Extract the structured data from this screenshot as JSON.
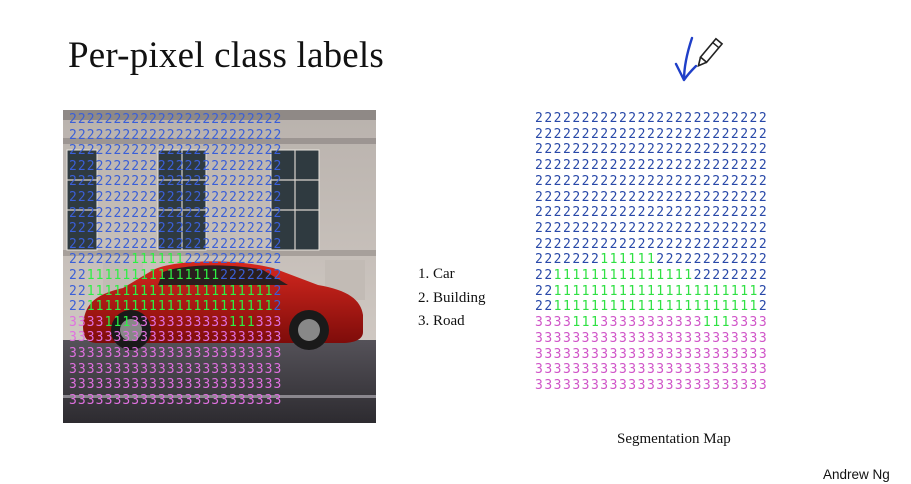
{
  "slide": {
    "title": "Per-pixel class labels",
    "legend": [
      "1. Car",
      "2. Building",
      "3. Road"
    ],
    "caption": "Segmentation Map",
    "author": "Andrew Ng"
  },
  "segmentation_map": {
    "rows": [
      "2222222222222222222222222",
      "2222222222222222222222222",
      "2222222222222222222222222",
      "2222222222222222222222222",
      "2222222222222222222222222",
      "2222222222222222222222222",
      "2222222222222222222222222",
      "2222222222222222222222222",
      "2222222222222222222222222",
      "2222222111111222222222222",
      "2211111111111111122222222",
      "2211111111111111111111112",
      "2211111111111111111111112",
      "3333111333333333331113333",
      "3333333333333333333333333",
      "3333333333333333333333333",
      "3333333333333333333333333",
      "3333333333333333333333333"
    ]
  },
  "photo_overlay": {
    "rows": [
      "222222222222222222222222",
      "222222222222222222222222",
      "222222222222222222222222",
      "222222222222222222222222",
      "222222222222222222222222",
      "222222222222222222222222",
      "222222222222222222222222",
      "222222222222222222222222",
      "222222222222222222222222",
      "222222211111122222222222",
      "221111111111111112222222",
      "221111111111111111111112",
      "221111111111111111111112",
      "333311133333333333111333",
      "333333333333333333333333",
      "333333333333333333333333",
      "333333333333333333333333",
      "333333333333333333333333",
      "333333333333333333333333"
    ]
  },
  "colors": {
    "class_1_car": "#2fe043",
    "class_2_building": "#2848a8",
    "class_3_road": "#d055c8",
    "pen_stroke": "#1f3fc8"
  }
}
